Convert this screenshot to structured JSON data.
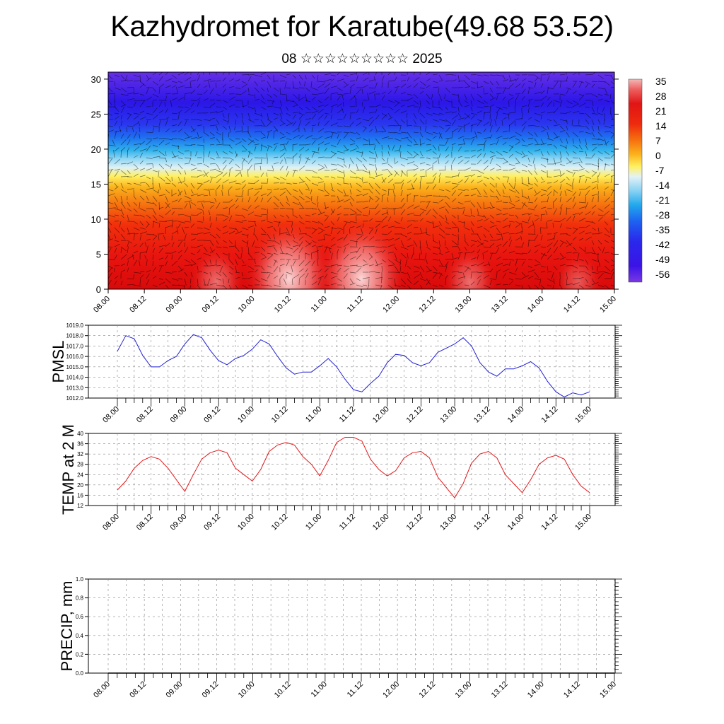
{
  "title": "Kazhydromet for Karatube(49.68 53.52)",
  "subtitle": "08 ☆☆☆☆☆☆☆☆☆ 2025",
  "colors": {
    "pmsl_line": "#1f1fd6",
    "temp_line": "#e31a1c",
    "warm": "#e8140f",
    "cold": "#2b16e8"
  },
  "chart_data": [
    {
      "type": "heatmap",
      "name": "cross-section",
      "x_tick_labels": [
        "08.00",
        "08.12",
        "09.00",
        "09.12",
        "10.00",
        "10.12",
        "11.00",
        "11.12",
        "12.00",
        "12.12",
        "13.00",
        "13.12",
        "14.00",
        "14.12",
        "15.00"
      ],
      "y_ticks": [
        0,
        5,
        10,
        15,
        20,
        25,
        30
      ],
      "ylim": [
        0,
        31
      ],
      "colorbar_labels": [
        "35",
        "28",
        "21",
        "14",
        "7",
        "0",
        "-7",
        "-14",
        "-21",
        "-28",
        "-35",
        "-42",
        "-49",
        "-56"
      ],
      "colorbar_range": [
        -60,
        38
      ],
      "warm_spots": [
        {
          "x_index": 5.0,
          "y": 1.5,
          "strength": 1.0
        },
        {
          "x_index": 7.0,
          "y": 1.5,
          "strength": 1.0
        },
        {
          "x_index": 3.0,
          "y": 1.0,
          "strength": 0.5
        },
        {
          "x_index": 10.0,
          "y": 1.0,
          "strength": 0.5
        },
        {
          "x_index": 13.0,
          "y": 1.0,
          "strength": 0.4
        }
      ],
      "grid": false
    },
    {
      "type": "line",
      "name": "pmsl",
      "ylabel": "PMSL",
      "ylim": [
        1012.0,
        1019.0
      ],
      "y_tick_labels": [
        "1012.0",
        "1013.0",
        "1014.0",
        "1015.0",
        "1016.0",
        "1017.0",
        "1018.0",
        "1019.0"
      ],
      "x_tick_labels": [
        "08.00",
        "08.12",
        "09.00",
        "09.12",
        "10.00",
        "10.12",
        "11.00",
        "11.12",
        "12.00",
        "12.12",
        "13.00",
        "13.12",
        "14.00",
        "14.12",
        "15.00"
      ],
      "x": [
        0,
        3,
        6,
        9,
        12,
        15,
        18,
        21,
        24,
        27,
        30,
        33,
        36,
        39,
        42,
        45,
        48,
        51,
        54,
        57,
        60,
        63,
        66,
        69,
        72,
        75,
        78,
        81,
        84,
        87,
        90,
        93,
        96,
        99,
        102,
        105,
        108,
        111,
        114,
        117,
        120,
        123,
        126,
        129,
        132,
        135,
        138,
        141,
        144,
        147,
        150,
        153,
        156,
        159,
        162,
        165,
        168
      ],
      "values": [
        1016.5,
        1018.0,
        1017.7,
        1016.1,
        1015.0,
        1015.0,
        1015.6,
        1016.0,
        1017.2,
        1018.1,
        1017.8,
        1016.6,
        1015.6,
        1015.2,
        1015.8,
        1016.1,
        1016.7,
        1017.6,
        1017.2,
        1016.0,
        1014.9,
        1014.3,
        1014.5,
        1014.5,
        1015.1,
        1015.8,
        1015.0,
        1013.8,
        1012.8,
        1012.6,
        1013.4,
        1014.1,
        1015.4,
        1016.2,
        1016.1,
        1015.4,
        1015.1,
        1015.4,
        1016.4,
        1016.8,
        1017.2,
        1017.8,
        1017.0,
        1015.4,
        1014.5,
        1014.1,
        1014.8,
        1014.8,
        1015.1,
        1015.5,
        1014.9,
        1013.6,
        1012.6,
        1012.1,
        1012.5,
        1012.3,
        1012.6
      ],
      "grid": true
    },
    {
      "type": "line",
      "name": "temp",
      "ylabel": "TEMP at 2 M",
      "ylim": [
        12,
        40
      ],
      "y_tick_labels": [
        "12",
        "16",
        "20",
        "24",
        "28",
        "32",
        "36",
        "40"
      ],
      "x_tick_labels": [
        "08.00",
        "08.12",
        "09.00",
        "09.12",
        "10.00",
        "10.12",
        "11.00",
        "11.12",
        "12.00",
        "12.12",
        "13.00",
        "13.12",
        "14.00",
        "14.12",
        "15.00"
      ],
      "x": [
        0,
        3,
        6,
        9,
        12,
        15,
        18,
        21,
        24,
        27,
        30,
        33,
        36,
        39,
        42,
        45,
        48,
        51,
        54,
        57,
        60,
        63,
        66,
        69,
        72,
        75,
        78,
        81,
        84,
        87,
        90,
        93,
        96,
        99,
        102,
        105,
        108,
        111,
        114,
        117,
        120,
        123,
        126,
        129,
        132,
        135,
        138,
        141,
        144,
        147,
        150,
        153,
        156,
        159,
        162,
        165,
        168
      ],
      "values": [
        18,
        21.5,
        26.5,
        29.5,
        31,
        30,
        26.5,
        22,
        17.5,
        24,
        30,
        32.5,
        33.5,
        32.5,
        26.5,
        24,
        21.5,
        26,
        33,
        35.5,
        36.5,
        35.5,
        31,
        28,
        23.5,
        29.5,
        36.5,
        38.5,
        38.5,
        37,
        30,
        26,
        23.5,
        25.5,
        30.5,
        32.5,
        33,
        30.5,
        23,
        19,
        15,
        20.5,
        28.5,
        32,
        33,
        30.5,
        24,
        20.5,
        17,
        22,
        28,
        30.5,
        31.5,
        30,
        24,
        19.5,
        17
      ],
      "grid": true
    },
    {
      "type": "line",
      "name": "precip",
      "ylabel": "PRECIP, mm",
      "ylim": [
        0.0,
        1.0
      ],
      "y_tick_labels": [
        "0.0",
        "0.2",
        "0.4",
        "0.6",
        "0.8",
        "1.0"
      ],
      "x_tick_labels": [
        "08.00",
        "08.12",
        "09.00",
        "09.12",
        "10.00",
        "10.12",
        "11.00",
        "11.12",
        "12.00",
        "12.12",
        "13.00",
        "13.12",
        "14.00",
        "14.12",
        "15.00"
      ],
      "x": [
        0,
        168
      ],
      "values": [
        0.0,
        0.0
      ],
      "grid": true
    }
  ]
}
